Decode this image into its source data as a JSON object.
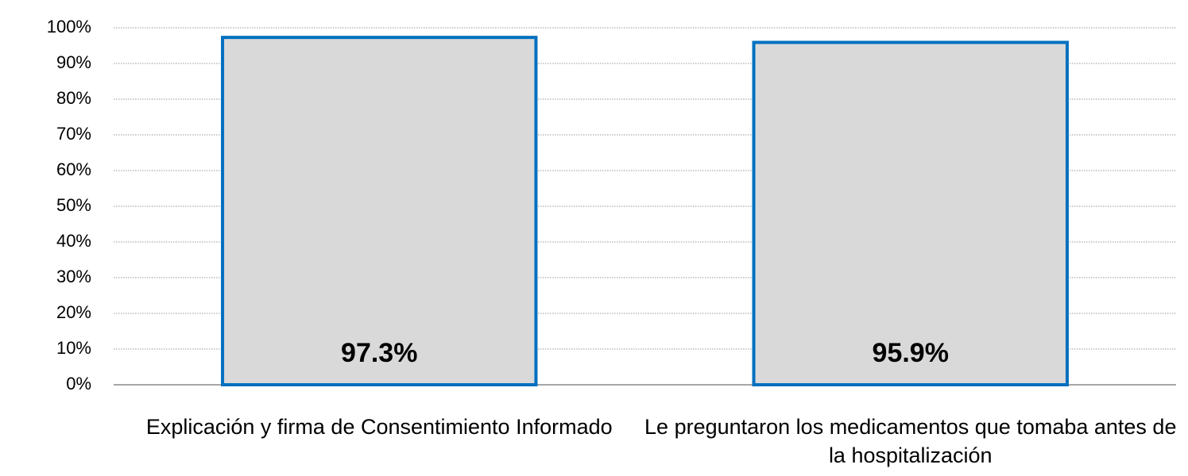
{
  "chart_data": {
    "type": "bar",
    "categories": [
      "Explicación y firma de Consentimiento Informado",
      "Le preguntaron los medicamentos que tomaba antes de la hospitalización"
    ],
    "values": [
      97.3,
      95.9
    ],
    "value_labels": [
      "97.3%",
      "95.9%"
    ],
    "color": "#d9d9d9",
    "edge_color": "#0070c0",
    "ylim": [
      0,
      100
    ],
    "yticks": [
      {
        "value": 0,
        "label": "0%"
      },
      {
        "value": 10,
        "label": "10%"
      },
      {
        "value": 20,
        "label": "20%"
      },
      {
        "value": 30,
        "label": "30%"
      },
      {
        "value": 40,
        "label": "40%"
      },
      {
        "value": 50,
        "label": "50%"
      },
      {
        "value": 60,
        "label": "60%"
      },
      {
        "value": 70,
        "label": "70%"
      },
      {
        "value": 80,
        "label": "80%"
      },
      {
        "value": 90,
        "label": "90%"
      },
      {
        "value": 100,
        "label": "100%"
      }
    ],
    "grid": true
  }
}
